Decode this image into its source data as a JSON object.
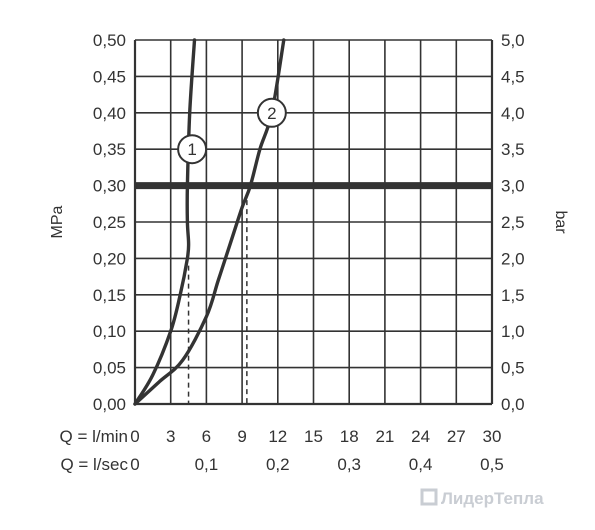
{
  "chart_data": {
    "type": "line",
    "left_axis": {
      "label": "MPa",
      "range": [
        0,
        0.5
      ],
      "ticks": [
        "0,00",
        "0,05",
        "0,10",
        "0,15",
        "0,20",
        "0,25",
        "0,30",
        "0,35",
        "0,40",
        "0,45",
        "0,50"
      ]
    },
    "right_axis": {
      "label": "bar",
      "range": [
        0,
        5
      ],
      "ticks": [
        "0,0",
        "0,5",
        "1,0",
        "1,5",
        "2,0",
        "2,5",
        "3,0",
        "3,5",
        "4,0",
        "4,5",
        "5,0"
      ]
    },
    "x_axis": {
      "range": [
        0,
        30
      ],
      "rows": [
        {
          "label": "Q = l/min",
          "ticks": [
            {
              "value": 0,
              "text": "0"
            },
            {
              "value": 3,
              "text": "3"
            },
            {
              "value": 6,
              "text": "6"
            },
            {
              "value": 9,
              "text": "9"
            },
            {
              "value": 12,
              "text": "12"
            },
            {
              "value": 15,
              "text": "15"
            },
            {
              "value": 18,
              "text": "18"
            },
            {
              "value": 21,
              "text": "21"
            },
            {
              "value": 24,
              "text": "24"
            },
            {
              "value": 27,
              "text": "27"
            },
            {
              "value": 30,
              "text": "30"
            }
          ]
        },
        {
          "label": "Q = l/sec",
          "ticks": [
            {
              "value": 0,
              "text": "0"
            },
            {
              "value": 6,
              "text": "0,1"
            },
            {
              "value": 12,
              "text": "0,2"
            },
            {
              "value": 18,
              "text": "0,3"
            },
            {
              "value": 24,
              "text": "0,4"
            },
            {
              "value": 30,
              "text": "0,5"
            }
          ]
        }
      ]
    },
    "grid": true,
    "reference_line": {
      "y": 0.3
    },
    "series": [
      {
        "marker": "1",
        "marker_at": [
          4.8,
          0.35
        ],
        "points": [
          [
            0,
            0
          ],
          [
            1.5,
            0.04
          ],
          [
            3,
            0.1
          ],
          [
            3.8,
            0.15
          ],
          [
            4.4,
            0.2
          ],
          [
            4.5,
            0.22
          ],
          [
            4.4,
            0.25
          ],
          [
            4.4,
            0.3
          ],
          [
            4.6,
            0.4
          ],
          [
            5.0,
            0.5
          ]
        ],
        "drop_line": {
          "x": 4.5,
          "y": 0.19
        }
      },
      {
        "marker": "2",
        "marker_at": [
          11.5,
          0.4
        ],
        "points": [
          [
            0,
            0
          ],
          [
            2,
            0.03
          ],
          [
            4,
            0.06
          ],
          [
            6,
            0.12
          ],
          [
            7,
            0.17
          ],
          [
            8,
            0.22
          ],
          [
            9,
            0.27
          ],
          [
            9.7,
            0.3
          ],
          [
            10.5,
            0.35
          ],
          [
            11.5,
            0.4
          ],
          [
            12.5,
            0.5
          ]
        ],
        "drop_line": {
          "x": 9.4,
          "y": 0.28
        }
      }
    ]
  },
  "watermark": "ЛидерТепла"
}
